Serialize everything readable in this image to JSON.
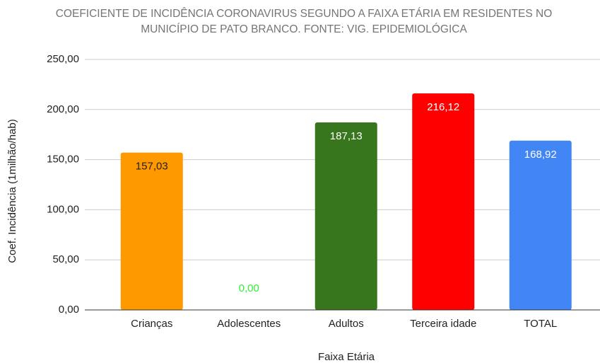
{
  "chart_data": {
    "type": "bar",
    "title": [
      "COEFICIENTE DE INCIDÊNCIA CORONAVIRUS SEGUNDO A FAIXA ETÁRIA EM RESIDENTES NO",
      "MUNICÍPIO DE PATO BRANCO. FONTE: VIG. EPIDEMIOLÓGICA"
    ],
    "x_label": "Faixa Etária",
    "y_label": "Coef. Incidência (1milhão/hab)",
    "categories": [
      "Crianças",
      "Adolescentes",
      "Adultos",
      "Terceira idade",
      "TOTAL"
    ],
    "values": [
      157.03,
      0,
      187.13,
      216.12,
      168.92
    ],
    "value_labels": [
      "157,03",
      "0,00",
      "187,13",
      "216,12",
      "168,92"
    ],
    "colors": [
      "#ff9900",
      "#00ff00",
      "#38761d",
      "#ff0000",
      "#4285f4"
    ],
    "label_colors": [
      "#222222",
      "#33ee33",
      "#ffffff",
      "#ffffff",
      "#ffffff"
    ],
    "ylim": [
      0,
      250
    ],
    "yticks": [
      {
        "value": 0,
        "label": "0,00"
      },
      {
        "value": 50,
        "label": "50,00"
      },
      {
        "value": 100,
        "label": "100,00"
      },
      {
        "value": 150,
        "label": "150,00"
      },
      {
        "value": 200,
        "label": "200,00"
      },
      {
        "value": 250,
        "label": "250,00"
      }
    ],
    "grid": true
  }
}
